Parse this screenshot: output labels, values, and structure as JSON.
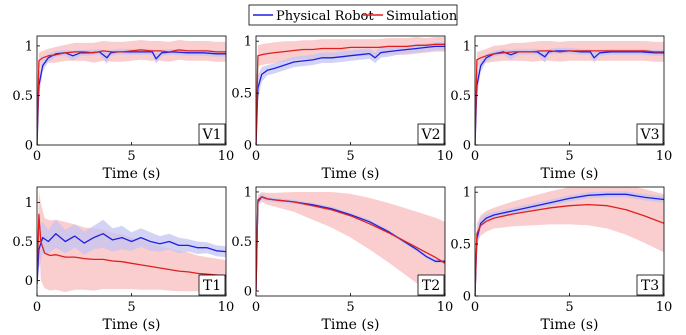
{
  "chart_data": {
    "legend": {
      "placement": "top-center",
      "entries": [
        {
          "name": "Physical Robot",
          "color": "#1f1fe0"
        },
        {
          "name": "Simulation",
          "color": "#e01f1f"
        }
      ]
    },
    "band_colors": {
      "Physical Robot": "#c4c4f2",
      "Simulation": "#f8b4b4"
    },
    "panels": [
      {
        "type": "line",
        "label": "V1",
        "xlabel": "Time (s)",
        "xlim": [
          0,
          10
        ],
        "ylim": [
          0,
          1.1
        ],
        "xticks": [
          0,
          5,
          10
        ],
        "yticks": [
          0,
          0.5,
          1
        ],
        "series": [
          {
            "name": "Physical Robot",
            "x": [
              0,
              0.1,
              0.3,
              0.6,
              1.0,
              1.5,
              1.9,
              2.3,
              2.8,
              3.3,
              3.7,
              3.9,
              4.3,
              5.0,
              5.6,
              6.1,
              6.3,
              6.6,
              7.2,
              8.0,
              8.8,
              9.5,
              10
            ],
            "y": [
              0,
              0.6,
              0.8,
              0.88,
              0.92,
              0.93,
              0.9,
              0.93,
              0.93,
              0.94,
              0.88,
              0.93,
              0.94,
              0.94,
              0.94,
              0.94,
              0.87,
              0.93,
              0.94,
              0.93,
              0.93,
              0.92,
              0.92
            ],
            "spread": [
              0,
              0.12,
              0.06,
              0.04,
              0.03,
              0.03,
              0.05,
              0.03,
              0.03,
              0.03,
              0.06,
              0.03,
              0.03,
              0.03,
              0.03,
              0.03,
              0.05,
              0.03,
              0.03,
              0.03,
              0.03,
              0.03,
              0.03
            ]
          },
          {
            "name": "Simulation",
            "x": [
              0,
              0.1,
              0.3,
              0.6,
              1.0,
              1.5,
              2.0,
              2.5,
              3.0,
              3.5,
              4.0,
              4.5,
              5.0,
              5.5,
              6.0,
              6.5,
              7.0,
              7.5,
              8.0,
              8.5,
              9.0,
              9.5,
              10
            ],
            "y": [
              0,
              0.85,
              0.88,
              0.9,
              0.91,
              0.93,
              0.94,
              0.94,
              0.93,
              0.95,
              0.94,
              0.94,
              0.95,
              0.96,
              0.95,
              0.95,
              0.94,
              0.96,
              0.95,
              0.95,
              0.95,
              0.94,
              0.94
            ],
            "spread": [
              0,
              0.08,
              0.07,
              0.07,
              0.08,
              0.08,
              0.09,
              0.09,
              0.1,
              0.1,
              0.1,
              0.1,
              0.1,
              0.1,
              0.1,
              0.1,
              0.1,
              0.1,
              0.1,
              0.1,
              0.1,
              0.1,
              0.1
            ]
          }
        ]
      },
      {
        "type": "line",
        "label": "V2",
        "xlabel": "Time (s)",
        "xlim": [
          0,
          10
        ],
        "ylim": [
          0,
          1.05
        ],
        "xticks": [
          0,
          5,
          10
        ],
        "yticks": [
          0,
          0.5,
          1
        ],
        "series": [
          {
            "name": "Physical Robot",
            "x": [
              0,
              0.1,
              0.3,
              0.6,
              1.0,
              1.5,
              2.0,
              2.5,
              3.0,
              3.5,
              4.0,
              4.5,
              5.0,
              5.5,
              6.0,
              6.3,
              6.6,
              7.0,
              7.5,
              8.0,
              8.5,
              9.0,
              9.5,
              10
            ],
            "y": [
              0,
              0.55,
              0.68,
              0.72,
              0.74,
              0.77,
              0.8,
              0.81,
              0.82,
              0.84,
              0.84,
              0.85,
              0.86,
              0.87,
              0.88,
              0.84,
              0.89,
              0.9,
              0.91,
              0.92,
              0.93,
              0.94,
              0.95,
              0.95
            ],
            "spread": [
              0,
              0.12,
              0.07,
              0.05,
              0.05,
              0.05,
              0.05,
              0.05,
              0.05,
              0.05,
              0.05,
              0.05,
              0.05,
              0.05,
              0.05,
              0.05,
              0.05,
              0.05,
              0.04,
              0.04,
              0.04,
              0.04,
              0.04,
              0.04
            ]
          },
          {
            "name": "Simulation",
            "x": [
              0,
              0.1,
              0.3,
              0.6,
              1.0,
              1.5,
              2.0,
              2.5,
              3.0,
              3.5,
              4.0,
              4.5,
              5.0,
              5.5,
              6.0,
              6.5,
              7.0,
              7.5,
              8.0,
              8.5,
              9.0,
              9.5,
              10
            ],
            "y": [
              0,
              0.86,
              0.87,
              0.88,
              0.89,
              0.9,
              0.91,
              0.92,
              0.92,
              0.93,
              0.93,
              0.93,
              0.94,
              0.94,
              0.94,
              0.94,
              0.95,
              0.95,
              0.95,
              0.96,
              0.96,
              0.97,
              0.97
            ],
            "spread": [
              0,
              0.1,
              0.1,
              0.1,
              0.1,
              0.1,
              0.09,
              0.09,
              0.09,
              0.09,
              0.09,
              0.09,
              0.08,
              0.08,
              0.08,
              0.08,
              0.08,
              0.08,
              0.08,
              0.08,
              0.07,
              0.07,
              0.07
            ]
          }
        ]
      },
      {
        "type": "line",
        "label": "V3",
        "xlabel": "Time (s)",
        "xlim": [
          0,
          10
        ],
        "ylim": [
          0,
          1.1
        ],
        "xticks": [
          0,
          5,
          10
        ],
        "yticks": [
          0,
          0.5,
          1
        ],
        "series": [
          {
            "name": "Physical Robot",
            "x": [
              0,
              0.1,
              0.3,
              0.6,
              1.0,
              1.5,
              1.9,
              2.3,
              2.8,
              3.3,
              3.7,
              3.9,
              4.3,
              5.0,
              5.6,
              6.1,
              6.3,
              6.6,
              7.2,
              8.0,
              8.8,
              9.5,
              10
            ],
            "y": [
              0,
              0.6,
              0.8,
              0.88,
              0.92,
              0.94,
              0.91,
              0.94,
              0.94,
              0.94,
              0.89,
              0.94,
              0.95,
              0.95,
              0.94,
              0.94,
              0.88,
              0.93,
              0.94,
              0.94,
              0.94,
              0.93,
              0.93
            ],
            "spread": [
              0,
              0.12,
              0.06,
              0.04,
              0.03,
              0.03,
              0.05,
              0.03,
              0.03,
              0.03,
              0.06,
              0.03,
              0.03,
              0.03,
              0.03,
              0.03,
              0.05,
              0.03,
              0.03,
              0.03,
              0.03,
              0.03,
              0.03
            ]
          },
          {
            "name": "Simulation",
            "x": [
              0,
              0.1,
              0.3,
              0.6,
              1.0,
              1.5,
              2.0,
              2.5,
              3.0,
              3.5,
              4.0,
              4.5,
              5.0,
              5.5,
              6.0,
              6.5,
              7.0,
              7.5,
              8.0,
              8.5,
              9.0,
              9.5,
              10
            ],
            "y": [
              0,
              0.86,
              0.88,
              0.9,
              0.92,
              0.93,
              0.94,
              0.94,
              0.94,
              0.95,
              0.95,
              0.94,
              0.95,
              0.95,
              0.95,
              0.95,
              0.95,
              0.95,
              0.95,
              0.95,
              0.95,
              0.94,
              0.94
            ],
            "spread": [
              0,
              0.08,
              0.07,
              0.07,
              0.08,
              0.08,
              0.09,
              0.09,
              0.1,
              0.1,
              0.1,
              0.1,
              0.1,
              0.1,
              0.1,
              0.1,
              0.1,
              0.1,
              0.1,
              0.1,
              0.1,
              0.1,
              0.1
            ]
          }
        ]
      },
      {
        "type": "line",
        "label": "T1",
        "xlabel": "Time (s)",
        "xlim": [
          0,
          10
        ],
        "ylim": [
          -0.2,
          1.2
        ],
        "xticks": [
          0,
          5,
          10
        ],
        "yticks": [
          0,
          0.5,
          1
        ],
        "series": [
          {
            "name": "Physical Robot",
            "x": [
              0,
              0.1,
              0.3,
              0.6,
              1.0,
              1.5,
              2.0,
              2.5,
              3.0,
              3.5,
              4.0,
              4.5,
              5.0,
              5.5,
              6.0,
              6.5,
              7.0,
              7.5,
              8.0,
              8.5,
              9.0,
              9.5,
              10
            ],
            "y": [
              -0.05,
              0.4,
              0.55,
              0.5,
              0.6,
              0.5,
              0.57,
              0.48,
              0.55,
              0.6,
              0.52,
              0.55,
              0.5,
              0.55,
              0.5,
              0.47,
              0.5,
              0.45,
              0.45,
              0.42,
              0.42,
              0.38,
              0.37
            ],
            "spread": [
              0.1,
              0.25,
              0.2,
              0.15,
              0.18,
              0.15,
              0.15,
              0.15,
              0.15,
              0.18,
              0.15,
              0.15,
              0.12,
              0.12,
              0.12,
              0.1,
              0.1,
              0.1,
              0.08,
              0.08,
              0.07,
              0.07,
              0.07
            ]
          },
          {
            "name": "Simulation",
            "x": [
              0,
              0.1,
              0.2,
              0.4,
              0.7,
              1.0,
              1.5,
              2.0,
              2.5,
              3.0,
              3.5,
              4.0,
              4.5,
              5.0,
              5.5,
              6.0,
              6.5,
              7.0,
              7.5,
              8.0,
              8.5,
              9.0,
              9.5,
              10
            ],
            "y": [
              0,
              0.85,
              0.5,
              0.35,
              0.32,
              0.33,
              0.3,
              0.3,
              0.28,
              0.27,
              0.27,
              0.25,
              0.24,
              0.22,
              0.2,
              0.18,
              0.16,
              0.14,
              0.12,
              0.11,
              0.09,
              0.08,
              0.07,
              0.06
            ],
            "spread": [
              0,
              0.3,
              0.5,
              0.45,
              0.45,
              0.45,
              0.45,
              0.42,
              0.4,
              0.4,
              0.38,
              0.36,
              0.35,
              0.33,
              0.32,
              0.3,
              0.28,
              0.27,
              0.26,
              0.25,
              0.23,
              0.22,
              0.21,
              0.2
            ]
          }
        ]
      },
      {
        "type": "line",
        "label": "T2",
        "xlabel": "Time (s)",
        "xlim": [
          0,
          10
        ],
        "ylim": [
          -0.05,
          1.05
        ],
        "xticks": [
          0,
          5,
          10
        ],
        "yticks": [
          0,
          0.5,
          1
        ],
        "series": [
          {
            "name": "Physical Robot",
            "x": [
              0,
              0.1,
              0.3,
              0.6,
              1.0,
              2.0,
              3.0,
              4.0,
              5.0,
              6.0,
              7.0,
              8.0,
              8.5,
              9.0,
              9.5,
              10
            ],
            "y": [
              0,
              0.9,
              0.95,
              0.93,
              0.92,
              0.9,
              0.87,
              0.83,
              0.77,
              0.7,
              0.6,
              0.48,
              0.42,
              0.35,
              0.3,
              0.3
            ],
            "spread": [
              0,
              0.04,
              0.03,
              0.02,
              0.02,
              0.02,
              0.02,
              0.02,
              0.02,
              0.02,
              0.02,
              0.02,
              0.02,
              0.02,
              0.02,
              0.02
            ]
          },
          {
            "name": "Simulation",
            "x": [
              0,
              0.1,
              0.3,
              0.6,
              1.0,
              2.0,
              3.0,
              4.0,
              5.0,
              6.0,
              7.0,
              8.0,
              9.0,
              9.5,
              10
            ],
            "y": [
              0,
              0.92,
              0.95,
              0.93,
              0.92,
              0.9,
              0.86,
              0.82,
              0.76,
              0.68,
              0.59,
              0.49,
              0.39,
              0.34,
              0.28
            ],
            "spread": [
              0,
              0.05,
              0.05,
              0.06,
              0.07,
              0.1,
              0.14,
              0.18,
              0.22,
              0.26,
              0.3,
              0.34,
              0.38,
              0.4,
              0.42
            ]
          }
        ]
      },
      {
        "type": "line",
        "label": "T3",
        "xlabel": "Time (s)",
        "xlim": [
          0,
          10
        ],
        "ylim": [
          0,
          1.05
        ],
        "xticks": [
          0,
          5,
          10
        ],
        "yticks": [
          0,
          0.5,
          1
        ],
        "series": [
          {
            "name": "Physical Robot",
            "x": [
              0,
              0.1,
              0.3,
              0.6,
              1.0,
              2.0,
              3.0,
              4.0,
              5.0,
              6.0,
              7.0,
              8.0,
              9.0,
              10
            ],
            "y": [
              0,
              0.55,
              0.7,
              0.75,
              0.78,
              0.82,
              0.86,
              0.9,
              0.94,
              0.97,
              0.98,
              0.98,
              0.95,
              0.93
            ],
            "spread": [
              0,
              0.1,
              0.05,
              0.04,
              0.03,
              0.03,
              0.03,
              0.03,
              0.03,
              0.03,
              0.03,
              0.03,
              0.03,
              0.03
            ]
          },
          {
            "name": "Simulation",
            "x": [
              0,
              0.1,
              0.3,
              0.6,
              1.0,
              2.0,
              3.0,
              4.0,
              5.0,
              6.0,
              7.0,
              8.0,
              9.0,
              10
            ],
            "y": [
              0,
              0.6,
              0.68,
              0.72,
              0.75,
              0.79,
              0.82,
              0.85,
              0.87,
              0.88,
              0.87,
              0.83,
              0.77,
              0.7
            ],
            "spread": [
              0,
              0.1,
              0.1,
              0.1,
              0.1,
              0.12,
              0.14,
              0.16,
              0.18,
              0.2,
              0.22,
              0.24,
              0.26,
              0.28
            ]
          }
        ]
      }
    ]
  }
}
